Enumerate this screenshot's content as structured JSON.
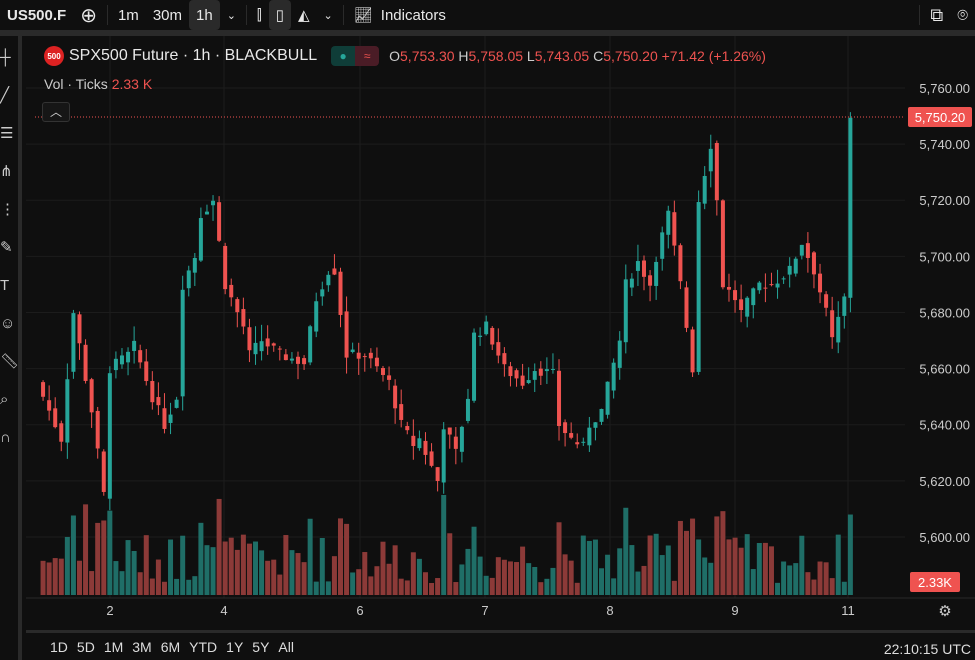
{
  "topbar": {
    "symbol": "US500.F",
    "add_icon": "plus-circle-icon",
    "intervals": [
      "1m",
      "30m",
      "1h"
    ],
    "active_interval": "1h",
    "indicators": "Indicators"
  },
  "legend": {
    "logo": "500",
    "title": "SPX500 Future · 1h · BLACKBULL",
    "o_label": "O",
    "o": "5,753.30",
    "h_label": "H",
    "h": "5,758.05",
    "l_label": "L",
    "l": "5,743.05",
    "c_label": "C",
    "c": "5,750.20",
    "change": "+71.42 (+1.26%)"
  },
  "vol": {
    "label": "Vol · Ticks",
    "value": "2.33 K"
  },
  "price_axis": {
    "labels": [
      "5,760.00",
      "5,740.00",
      "5,720.00",
      "5,700.00",
      "5,680.00",
      "5,660.00",
      "5,640.00",
      "5,620.00",
      "5,600.00"
    ],
    "last_price": "5,750.20",
    "last_volume": "2.33K"
  },
  "time_axis": {
    "labels": [
      "2",
      "4",
      "6",
      "7",
      "8",
      "9",
      "11"
    ]
  },
  "ranges": [
    "1D",
    "5D",
    "1M",
    "3M",
    "6M",
    "YTD",
    "1Y",
    "5Y",
    "All"
  ],
  "clock": "22:10:15 UTC",
  "colors": {
    "up": "#26a69a",
    "down": "#ef5350",
    "vol_up": "#1f6e67",
    "vol_down": "#8c3a38"
  },
  "price_path": [
    [
      0,
      5655
    ],
    [
      4,
      5635
    ],
    [
      6,
      5680
    ],
    [
      9,
      5645
    ],
    [
      11,
      5615
    ],
    [
      12,
      5660
    ],
    [
      15,
      5665
    ],
    [
      16,
      5668
    ],
    [
      19,
      5650
    ],
    [
      21,
      5640
    ],
    [
      23,
      5650
    ],
    [
      24,
      5690
    ],
    [
      26,
      5700
    ],
    [
      27,
      5715
    ],
    [
      29,
      5720
    ],
    [
      30,
      5705
    ],
    [
      31,
      5690
    ],
    [
      34,
      5675
    ],
    [
      35,
      5665
    ],
    [
      37,
      5670
    ],
    [
      40,
      5665
    ],
    [
      44,
      5662
    ],
    [
      46,
      5685
    ],
    [
      48,
      5695
    ],
    [
      49,
      5695
    ],
    [
      51,
      5665
    ],
    [
      54,
      5665
    ],
    [
      56,
      5660
    ],
    [
      58,
      5655
    ],
    [
      60,
      5640
    ],
    [
      62,
      5633
    ],
    [
      63,
      5635
    ],
    [
      66,
      5620
    ],
    [
      67,
      5640
    ],
    [
      69,
      5630
    ],
    [
      71,
      5650
    ],
    [
      72,
      5672
    ],
    [
      74,
      5675
    ],
    [
      76,
      5665
    ],
    [
      77,
      5660
    ],
    [
      80,
      5655
    ],
    [
      82,
      5660
    ],
    [
      85,
      5658
    ],
    [
      86,
      5640
    ],
    [
      88,
      5635
    ],
    [
      90,
      5632
    ],
    [
      91,
      5640
    ],
    [
      93,
      5645
    ],
    [
      96,
      5670
    ],
    [
      97,
      5690
    ],
    [
      99,
      5698
    ],
    [
      101,
      5690
    ],
    [
      102,
      5700
    ],
    [
      104,
      5715
    ],
    [
      106,
      5690
    ],
    [
      107,
      5675
    ],
    [
      108,
      5660
    ],
    [
      109,
      5720
    ],
    [
      111,
      5740
    ],
    [
      112,
      5720
    ],
    [
      113,
      5690
    ],
    [
      115,
      5685
    ],
    [
      116,
      5680
    ],
    [
      119,
      5690
    ],
    [
      121,
      5690
    ],
    [
      124,
      5695
    ],
    [
      126,
      5705
    ],
    [
      128,
      5695
    ],
    [
      130,
      5680
    ],
    [
      131,
      5670
    ],
    [
      133,
      5685
    ],
    [
      134,
      5750
    ]
  ]
}
